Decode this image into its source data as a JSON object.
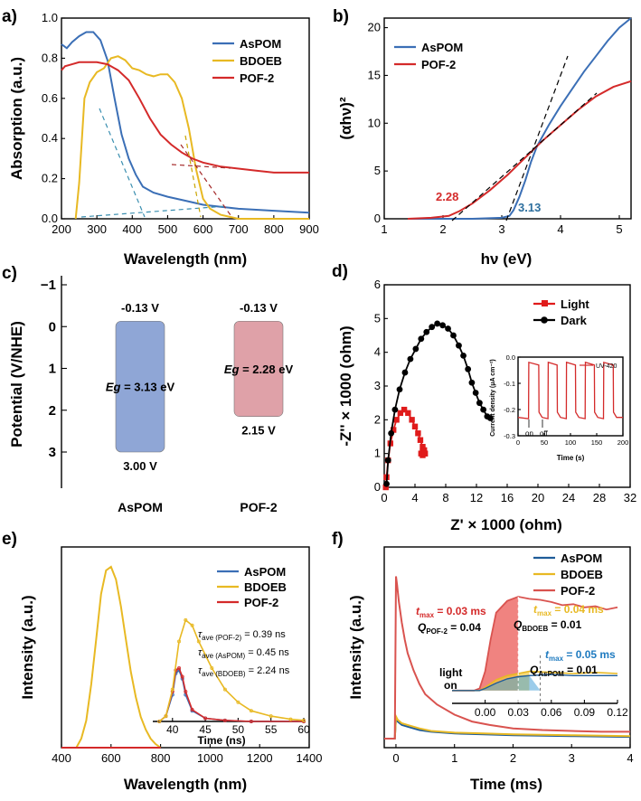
{
  "chart_data": [
    {
      "panel": "a)",
      "type": "line",
      "xlabel": "Wavelength (nm)",
      "ylabel": "Absorption (a.u.)",
      "xlim": [
        200,
        900
      ],
      "ylim": [
        0,
        1.0
      ],
      "xticks": [
        "200",
        "300",
        "400",
        "500",
        "600",
        "700",
        "800",
        "900"
      ],
      "yticks": [
        "0.0",
        "0.2",
        "0.4",
        "0.6",
        "0.8",
        "1.0"
      ],
      "legend": "top-right",
      "series": [
        {
          "name": "AsPOM",
          "color": "#3b6fb6",
          "x": [
            200,
            215,
            230,
            250,
            270,
            290,
            310,
            330,
            350,
            370,
            390,
            410,
            430,
            460,
            500,
            550,
            600,
            650,
            700,
            800,
            900
          ],
          "y": [
            0.87,
            0.85,
            0.88,
            0.91,
            0.93,
            0.93,
            0.89,
            0.79,
            0.6,
            0.42,
            0.3,
            0.22,
            0.16,
            0.13,
            0.11,
            0.09,
            0.07,
            0.06,
            0.05,
            0.04,
            0.03
          ]
        },
        {
          "name": "BDOEB",
          "color": "#e8b923",
          "x": [
            240,
            250,
            265,
            280,
            300,
            320,
            340,
            360,
            380,
            400,
            420,
            440,
            460,
            480,
            500,
            520,
            540,
            560,
            580,
            600,
            620,
            650,
            700,
            800,
            900
          ],
          "y": [
            0.0,
            0.18,
            0.6,
            0.68,
            0.73,
            0.75,
            0.8,
            0.81,
            0.79,
            0.75,
            0.74,
            0.72,
            0.71,
            0.72,
            0.72,
            0.68,
            0.6,
            0.45,
            0.25,
            0.1,
            0.05,
            0.02,
            0.0,
            0.0,
            0.0
          ]
        },
        {
          "name": "POF-2",
          "color": "#d42a2a",
          "x": [
            200,
            210,
            230,
            250,
            270,
            300,
            330,
            360,
            390,
            420,
            450,
            480,
            510,
            540,
            570,
            600,
            650,
            700,
            750,
            800,
            850,
            900
          ],
          "y": [
            0.74,
            0.76,
            0.77,
            0.78,
            0.78,
            0.78,
            0.77,
            0.74,
            0.69,
            0.6,
            0.5,
            0.42,
            0.37,
            0.33,
            0.3,
            0.28,
            0.26,
            0.25,
            0.24,
            0.23,
            0.23,
            0.23
          ]
        }
      ]
    },
    {
      "panel": "b)",
      "type": "line",
      "xlabel": "hν (eV)",
      "ylabel": "(αhν)²",
      "xlim": [
        1,
        5.2
      ],
      "ylim": [
        0,
        21
      ],
      "xticks": [
        "1",
        "2",
        "3",
        "4",
        "5"
      ],
      "yticks": [
        "0",
        "5",
        "10",
        "15",
        "20"
      ],
      "legend": "top-left",
      "annotations": [
        "2.28",
        "3.13"
      ],
      "series": [
        {
          "name": "AsPOM",
          "color": "#3b6fb6",
          "x": [
            1.4,
            2.5,
            3.0,
            3.13,
            3.2,
            3.3,
            3.4,
            3.5,
            3.6,
            3.8,
            4.0,
            4.2,
            4.4,
            4.6,
            4.8,
            5.0,
            5.2
          ],
          "y": [
            0,
            0,
            0.1,
            0.3,
            0.9,
            2.3,
            4.0,
            6.0,
            7.6,
            9.8,
            11.8,
            13.6,
            15.4,
            17.0,
            18.6,
            20.0,
            21.0
          ]
        },
        {
          "name": "POF-2",
          "color": "#d42a2a",
          "x": [
            1.4,
            1.8,
            2.1,
            2.28,
            2.5,
            2.8,
            3.1,
            3.4,
            3.7,
            4.0,
            4.3,
            4.6,
            4.9,
            5.2
          ],
          "y": [
            0.0,
            0.1,
            0.3,
            0.8,
            1.6,
            3.0,
            4.6,
            6.4,
            8.2,
            9.8,
            11.4,
            12.8,
            13.8,
            14.4
          ]
        }
      ]
    },
    {
      "panel": "c)",
      "type": "diagram",
      "ylabel": "Potential (V/NHE)",
      "ylim": [
        3.5,
        -1.2
      ],
      "yticks": [
        "-1",
        "0",
        "1",
        "2",
        "3"
      ],
      "bands": [
        {
          "name": "AsPOM",
          "top": "-0.13 V",
          "bottom": "3.00 V",
          "eg": "= 3.13 eV",
          "cb": -0.13,
          "vb": 3.0,
          "color": "#8fa6d6"
        },
        {
          "name": "POF-2",
          "top": "-0.13 V",
          "bottom": "2.15 V",
          "eg": "= 2.28 eV",
          "cb": -0.13,
          "vb": 2.15,
          "color": "#dfa1a8"
        }
      ],
      "eg_prefix": "E",
      "eg_sub": "g"
    },
    {
      "panel": "d)",
      "type": "scatter",
      "xlabel": "Z' × 1000 (ohm)",
      "ylabel": "-Z'' × 1000 (ohm)",
      "xlim": [
        0,
        32
      ],
      "ylim": [
        0,
        6
      ],
      "xticks": [
        "0",
        "4",
        "8",
        "12",
        "16",
        "20",
        "24",
        "28",
        "32"
      ],
      "yticks": [
        "0",
        "1",
        "2",
        "3",
        "4",
        "5",
        "6"
      ],
      "legend": "top-right",
      "series": [
        {
          "name": "Light",
          "color": "#e01b1b",
          "marker": "square",
          "x": [
            0.2,
            0.3,
            0.5,
            0.8,
            1.2,
            1.6,
            2.1,
            2.6,
            3.1,
            3.6,
            4.0,
            4.4,
            4.7,
            5.0,
            5.2,
            5.3,
            5.2,
            5.0,
            4.8,
            5.0,
            5.3
          ],
          "y": [
            0.0,
            0.3,
            0.8,
            1.3,
            1.7,
            2.0,
            2.2,
            2.3,
            2.2,
            2.0,
            1.8,
            1.6,
            1.4,
            1.2,
            1.1,
            1.0,
            1.0,
            0.95,
            1.0,
            1.05,
            1.0
          ]
        },
        {
          "name": "Dark",
          "color": "#000000",
          "marker": "circle",
          "x": [
            0.3,
            0.5,
            0.9,
            1.4,
            2.0,
            2.7,
            3.4,
            4.1,
            4.8,
            5.5,
            6.2,
            6.9,
            7.6,
            8.3,
            9.0,
            9.7,
            10.3,
            10.9,
            11.4,
            11.9,
            12.4,
            12.9,
            13.4,
            13.8
          ],
          "y": [
            0.1,
            0.8,
            1.6,
            2.3,
            2.9,
            3.4,
            3.8,
            4.1,
            4.4,
            4.6,
            4.75,
            4.85,
            4.8,
            4.7,
            4.5,
            4.2,
            3.9,
            3.5,
            3.1,
            2.8,
            2.5,
            2.3,
            2.1,
            2.05
          ]
        }
      ],
      "inset": {
        "type": "line",
        "xlabel": "Time (s)",
        "ylabel": "Current density (μA cm⁻²)",
        "xlim": [
          0,
          200
        ],
        "ylim": [
          -0.3,
          0.0
        ],
        "xticks": [
          "0",
          "50",
          "100",
          "150",
          "200"
        ],
        "yticks": [
          "0.0",
          "-0.1",
          "-0.2",
          "-0.3"
        ],
        "legend": "UV-420",
        "labels": [
          "on",
          "off"
        ],
        "color": "#d42a2a",
        "on_times": [
          20,
          57,
          92,
          128,
          163
        ],
        "off_times": [
          40,
          75,
          110,
          146,
          182
        ],
        "on_level": -0.02,
        "off_level": -0.23
      }
    },
    {
      "panel": "e)",
      "type": "line",
      "xlabel": "Wavelength (nm)",
      "ylabel": "Intensity (a.u.)",
      "xlim": [
        400,
        1400
      ],
      "ylim": [
        0,
        1.05
      ],
      "xticks": [
        "400",
        "600",
        "800",
        "1000",
        "1200",
        "1400"
      ],
      "legend": "top-right",
      "series": [
        {
          "name": "AsPOM",
          "color": "#3b6fb6",
          "x": [
            400,
            800
          ],
          "y": [
            0.0,
            0.0
          ]
        },
        {
          "name": "BDOEB",
          "color": "#e8b923",
          "x": [
            460,
            480,
            500,
            520,
            540,
            560,
            580,
            600,
            620,
            640,
            660,
            680,
            700,
            720,
            740,
            760,
            780,
            800
          ],
          "y": [
            0.0,
            0.05,
            0.15,
            0.35,
            0.6,
            0.85,
            0.98,
            1.0,
            0.93,
            0.78,
            0.6,
            0.42,
            0.28,
            0.17,
            0.1,
            0.05,
            0.02,
            0.0
          ]
        },
        {
          "name": "POF-2",
          "color": "#d42a2a",
          "x": [
            400,
            800
          ],
          "y": [
            0.0,
            0.0
          ]
        }
      ],
      "inset": {
        "type": "line",
        "xlabel": "Time (ns)",
        "xlim": [
          37,
          60
        ],
        "xticks": [
          "40",
          "45",
          "50",
          "55",
          "60"
        ],
        "annotations": [
          {
            "label": "τ",
            "sub": "ave (POF-2)",
            "value": " = 0.39 ns"
          },
          {
            "label": "τ",
            "sub": "ave (AsPOM)",
            "value": " = 0.45 ns"
          },
          {
            "label": "τ",
            "sub": "ave (BDOEB)",
            "value": " = 2.24 ns"
          }
        ],
        "series": [
          {
            "name": "AsPOM",
            "color": "#3b6fb6",
            "x": [
              38,
              39,
              40,
              40.5,
              41,
              41.5,
              42,
              43,
              45,
              48,
              52,
              60
            ],
            "y": [
              0.0,
              0.05,
              0.25,
              0.45,
              0.48,
              0.4,
              0.25,
              0.1,
              0.03,
              0.01,
              0.0,
              0.0
            ]
          },
          {
            "name": "POF-2",
            "color": "#d42a2a",
            "x": [
              38,
              39,
              40,
              40.5,
              41,
              41.5,
              42,
              43,
              45,
              48,
              52,
              60
            ],
            "y": [
              0.0,
              0.05,
              0.28,
              0.48,
              0.5,
              0.42,
              0.28,
              0.11,
              0.03,
              0.01,
              0.0,
              0.0
            ]
          },
          {
            "name": "BDOEB",
            "color": "#e8b923",
            "x": [
              38,
              39,
              40,
              41,
              42,
              43,
              44,
              46,
              48,
              50,
              52,
              55,
              58,
              60
            ],
            "y": [
              0.0,
              0.05,
              0.3,
              0.75,
              0.95,
              0.9,
              0.75,
              0.5,
              0.3,
              0.18,
              0.1,
              0.05,
              0.02,
              0.01
            ]
          }
        ]
      }
    },
    {
      "panel": "f)",
      "type": "line",
      "xlabel": "Time (ms)",
      "ylabel": "Intensity (a.u.)",
      "xlim": [
        -0.2,
        4.0
      ],
      "xticks": [
        "0",
        "1",
        "2",
        "3",
        "4"
      ],
      "legend": "top-right",
      "series": [
        {
          "name": "AsPOM",
          "color": "#1f5c99",
          "x": [
            -0.2,
            -0.02,
            0.0,
            0.03,
            0.1,
            0.2,
            0.3,
            0.4,
            0.6,
            1.0,
            1.5,
            2.0,
            3.0,
            4.0
          ],
          "y": [
            0.0,
            0.0,
            0.12,
            0.1,
            0.08,
            0.07,
            0.06,
            0.05,
            0.04,
            0.03,
            0.025,
            0.02,
            0.015,
            0.01
          ]
        },
        {
          "name": "BDOEB",
          "color": "#e8b923",
          "x": [
            -0.2,
            -0.02,
            0.0,
            0.03,
            0.1,
            0.2,
            0.3,
            0.4,
            0.6,
            1.0,
            1.5,
            2.0,
            3.0,
            4.0
          ],
          "y": [
            0.0,
            0.0,
            0.13,
            0.11,
            0.09,
            0.08,
            0.07,
            0.06,
            0.045,
            0.035,
            0.03,
            0.025,
            0.02,
            0.015
          ]
        },
        {
          "name": "POF-2",
          "color": "#d9534f",
          "x": [
            -0.2,
            -0.02,
            0.0,
            0.02,
            0.05,
            0.1,
            0.15,
            0.2,
            0.3,
            0.4,
            0.5,
            0.7,
            1.0,
            1.3,
            1.6,
            2.0,
            2.5,
            3.0,
            3.5,
            4.0
          ],
          "y": [
            0.0,
            0.0,
            0.95,
            0.9,
            0.8,
            0.68,
            0.58,
            0.5,
            0.4,
            0.32,
            0.26,
            0.2,
            0.14,
            0.1,
            0.08,
            0.06,
            0.05,
            0.045,
            0.04,
            0.04
          ]
        }
      ],
      "inset": {
        "xlim": [
          -0.03,
          0.12
        ],
        "xticks": [
          "0.00",
          "0.03",
          "0.06",
          "0.09",
          "0.12"
        ],
        "labels": [
          "light",
          "on"
        ],
        "annotations": [
          {
            "t": "t",
            "sub": "max",
            "value": " = 0.03 ms",
            "q": "Q",
            "qsub": "POF-2",
            "qval": " = 0.04",
            "color": "#d42a2a"
          },
          {
            "t": "t",
            "sub": "max",
            "value": " = 0.04 ms",
            "q": "Q",
            "qsub": "BDOEB",
            "qval": " = 0.01",
            "color": "#e8b923"
          },
          {
            "t": "t",
            "sub": "max",
            "value": " = 0.05 ms",
            "q": "Q",
            "qsub": "AsPOM",
            "qval": " = 0.01",
            "color": "#1f7bc0"
          }
        ]
      }
    }
  ]
}
